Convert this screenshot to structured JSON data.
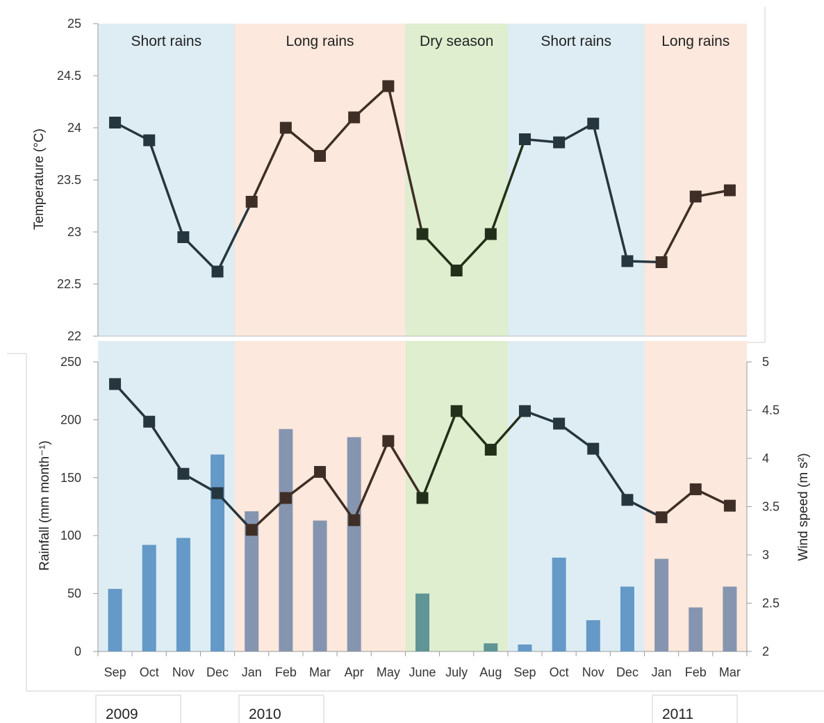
{
  "chart_data": [
    {
      "type": "line",
      "panel": "temperature",
      "ylabel": "Temperature (°C)",
      "ylim": [
        22,
        25
      ],
      "yticks": [
        "22",
        "22.5",
        "23",
        "23.5",
        "24",
        "24.5",
        "25"
      ],
      "months": [
        "Sep",
        "Oct",
        "Nov",
        "Dec",
        "Jan",
        "Feb",
        "Mar",
        "Apr",
        "May",
        "June",
        "July",
        "Aug",
        "Sep",
        "Oct",
        "Nov",
        "Dec",
        "Jan",
        "Feb",
        "Mar"
      ],
      "values": [
        24.05,
        23.88,
        22.95,
        22.62,
        23.29,
        24.0,
        23.73,
        24.1,
        24.4,
        22.98,
        22.63,
        22.98,
        23.89,
        23.86,
        24.04,
        22.72,
        22.71,
        23.34,
        23.4
      ],
      "seasons": [
        {
          "label": "Short rains",
          "start": 0,
          "end": 3,
          "color": "#deedf4",
          "line": "#26363f"
        },
        {
          "label": "Long rains",
          "start": 4,
          "end": 8,
          "color": "#fce8dc",
          "line": "#3f2e25"
        },
        {
          "label": "Dry season",
          "start": 9,
          "end": 11,
          "color": "#deeece",
          "line": "#233019"
        },
        {
          "label": "Short rains",
          "start": 12,
          "end": 15,
          "color": "#deedf4",
          "line": "#26363f"
        },
        {
          "label": "Long rains",
          "start": 16,
          "end": 18,
          "color": "#fce8dc",
          "line": "#3f2e25"
        }
      ]
    },
    {
      "type": "bar+line",
      "panel": "rainfall-wind",
      "ylabel": "Rainfall (mm month⁻¹)",
      "y2label": "Wind speed (m s²)",
      "ylim": [
        0,
        250
      ],
      "y2lim": [
        2,
        5
      ],
      "yticks": [
        "0",
        "50",
        "100",
        "150",
        "200",
        "250"
      ],
      "y2ticks": [
        "2",
        "2.5",
        "3",
        "3.5",
        "4",
        "4.5",
        "5"
      ],
      "categories": [
        "Sep",
        "Oct",
        "Nov",
        "Dec",
        "Jan",
        "Feb",
        "Mar",
        "Apr",
        "May",
        "June",
        "July",
        "Aug",
        "Sep",
        "Oct",
        "Nov",
        "Dec",
        "Jan",
        "Feb",
        "Mar"
      ],
      "rainfall": [
        54,
        92,
        98,
        170,
        121,
        192,
        113,
        185,
        0,
        50,
        0,
        7,
        6,
        81,
        27,
        56,
        80,
        38,
        56
      ],
      "wind_speed": [
        4.77,
        4.38,
        3.84,
        3.64,
        3.26,
        3.59,
        3.86,
        3.36,
        4.18,
        3.59,
        4.49,
        4.09,
        4.49,
        4.36,
        4.1,
        3.57,
        3.39,
        3.68,
        3.51
      ],
      "bar_colors": {
        "Short rains": "#6499c8",
        "Long rains": "#8595b0",
        "Dry season": "#5f9595"
      },
      "years": [
        "2009",
        "2010",
        "2011"
      ]
    }
  ]
}
